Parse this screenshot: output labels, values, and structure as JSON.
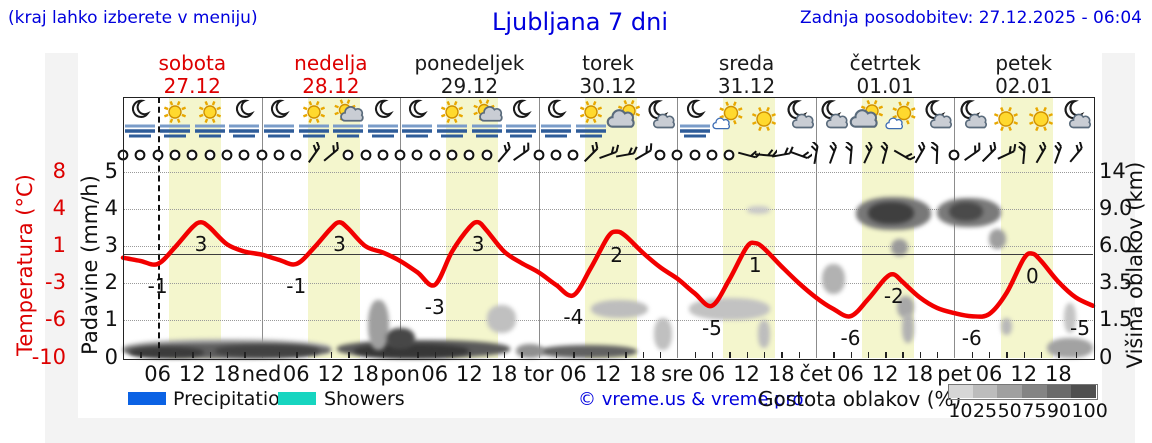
{
  "header": {
    "menu_hint": "(kraj lahko izberete v meniju)",
    "title": "Ljubljana 7 dni",
    "last_update": "Zadnja posodobitev: 27.12.2025 - 06:04"
  },
  "colors": {
    "accent_blue": "#0000dd",
    "day_highlight_red": "#dd0000",
    "curve_red": "#f20000",
    "daylight_band": "#f4f6cd",
    "precipitation_blue": "#0b62e4",
    "showers_teal": "#17d5c0"
  },
  "days": [
    {
      "name": "sobota",
      "date": "27.12",
      "highlight": true
    },
    {
      "name": "nedelja",
      "date": "28.12",
      "highlight": true
    },
    {
      "name": "ponedeljek",
      "date": "29.12",
      "highlight": false
    },
    {
      "name": "torek",
      "date": "30.12",
      "highlight": false
    },
    {
      "name": "sreda",
      "date": "31.12",
      "highlight": false
    },
    {
      "name": "četrtek",
      "date": "01.01",
      "highlight": false
    },
    {
      "name": "petek",
      "date": "02.01",
      "highlight": false
    }
  ],
  "axes": {
    "temperature": {
      "title": "Temperatura (°C)",
      "ticks": [
        "8",
        "4",
        "1",
        "-3",
        "-6",
        "-10"
      ]
    },
    "precipitation": {
      "title": "Padavine (mm/h)",
      "ticks": [
        "5",
        "4",
        "3",
        "2",
        "1",
        "0"
      ]
    },
    "cloud_height": {
      "title": "Višina oblakov (km)",
      "ticks": [
        "14",
        "9.0",
        "6.0",
        "3.5",
        "1.5",
        "0"
      ]
    },
    "x_hour_labels": [
      "06",
      "12",
      "18"
    ],
    "x_day_abbrevs": [
      "ned",
      "pon",
      "tor",
      "sre",
      "čet",
      "pet"
    ]
  },
  "weather_icons": [
    "moon-fog",
    "sun-fog",
    "sun-fog",
    "moon-fog",
    "moon-fog",
    "sun-fog",
    "sun-cloud-fog",
    "moon-fog",
    "moon-fog",
    "sun-fog",
    "sun-cloud-fog",
    "moon-fog",
    "moon-fog",
    "sun-fog",
    "sun-cloud",
    "moon-cloud",
    "moon-fog",
    "sun-smallcloud",
    "sun",
    "moon-cloud",
    "moon-cloud",
    "sun-cloud",
    "sun-smallcloud",
    "moon-cloud",
    "moon-cloud",
    "sun",
    "sun",
    "moon-cloud"
  ],
  "wind_symbols": [
    "calm",
    "calm",
    "calm",
    "calm",
    "calm",
    "calm",
    "calm",
    "calm",
    "calm",
    "calm",
    "calm",
    "barb:-55",
    "barb:-40",
    "calm",
    "calm",
    "calm",
    "calm",
    "calm",
    "calm",
    "calm",
    "calm",
    "calm",
    "barb:-50",
    "barb:-35",
    "calm",
    "calm",
    "calm",
    "barb:-45",
    "barb:-20",
    "barb:-10",
    "barb:-30",
    "calm",
    "calm",
    "calm",
    "calm",
    "calm",
    "barb:15",
    "barb:5",
    "barb:-10",
    "barb:20",
    "barb:-80",
    "barb:-70",
    "barb:-85",
    "barb:-65",
    "barb:-75",
    "barb:30",
    "barb:-60",
    "barb:-88",
    "calm",
    "barb:-35",
    "barb:-45",
    "barb:-25",
    "barb:-85",
    "barb:-60",
    "barb:-70",
    "barb:-50"
  ],
  "chart_data": {
    "type": "line",
    "title": "Ljubljana 7 dni",
    "xlabel": "",
    "ylabel_left": [
      "Temperatura (°C)",
      "Padavine (mm/h)"
    ],
    "ylabel_right": "Višina oblakov (km)",
    "temp_axis_range": [
      -10,
      8
    ],
    "precip_axis_range": [
      0,
      5
    ],
    "cloud_axis_km": [
      0,
      1.5,
      3.5,
      6,
      9,
      14
    ],
    "x_range_hours": [
      0,
      168
    ],
    "daylight_hours": [
      8,
      17
    ],
    "current_time_hour": 6.1,
    "freezing_line_c": 0,
    "grid": true,
    "series": [
      {
        "name": "Temperatura (°C)",
        "color": "#f20000",
        "x_hours": [
          0,
          3,
          6,
          9,
          12,
          13.5,
          15,
          18,
          21,
          24,
          27,
          30,
          33,
          36,
          37.5,
          39,
          42,
          45,
          48,
          51,
          54,
          57,
          60,
          61.5,
          63,
          66,
          69,
          72,
          75,
          78,
          81,
          84,
          85.5,
          87,
          90,
          93,
          96,
          99,
          102,
          105,
          108,
          109.5,
          111,
          114,
          117,
          120,
          123,
          126,
          129,
          132,
          133.5,
          135,
          138,
          141,
          144,
          147,
          150,
          153,
          156,
          157.5,
          159,
          162,
          165,
          168
        ],
        "values": [
          -0.4,
          -0.7,
          -1.0,
          0.6,
          2.5,
          3.0,
          2.5,
          0.9,
          0.2,
          -0.1,
          -0.6,
          -1.0,
          0.5,
          2.4,
          3.0,
          2.4,
          0.7,
          0.1,
          -0.7,
          -1.8,
          -3.0,
          0.2,
          2.5,
          3.0,
          2.2,
          0.2,
          -0.9,
          -1.8,
          -3.0,
          -4.0,
          -1.4,
          1.6,
          2.1,
          1.7,
          0.1,
          -1.3,
          -2.4,
          -3.8,
          -5.0,
          -2.5,
          0.6,
          1.0,
          0.5,
          -1.2,
          -2.8,
          -4.2,
          -5.3,
          -6.0,
          -4.4,
          -2.4,
          -2.0,
          -2.7,
          -4.2,
          -5.2,
          -5.7,
          -6.0,
          -5.8,
          -3.8,
          -0.5,
          0.0,
          -0.7,
          -2.7,
          -4.2,
          -5.0
        ]
      }
    ],
    "point_labels": [
      {
        "hour": 6,
        "value": -1
      },
      {
        "hour": 13.5,
        "value": 3
      },
      {
        "hour": 30,
        "value": -1
      },
      {
        "hour": 37.5,
        "value": 3
      },
      {
        "hour": 54,
        "value": -3
      },
      {
        "hour": 61.5,
        "value": 3
      },
      {
        "hour": 78,
        "value": -4
      },
      {
        "hour": 85.5,
        "value": 2
      },
      {
        "hour": 102,
        "value": -5
      },
      {
        "hour": 109.5,
        "value": 1
      },
      {
        "hour": 126,
        "value": -6
      },
      {
        "hour": 133.5,
        "value": -2
      },
      {
        "hour": 147,
        "value": -6
      },
      {
        "hour": 157.5,
        "value": 0
      },
      {
        "hour": 167.5,
        "value": -5
      }
    ]
  },
  "cloud_blobs": [
    {
      "h0": 0,
      "h1": 36,
      "k0": 0,
      "k1": 0.75,
      "c": "#b0b0b0"
    },
    {
      "h0": 0,
      "h1": 36,
      "k0": 0,
      "k1": 0.6,
      "c": "#5f5f5f"
    },
    {
      "h0": 1,
      "h1": 14,
      "k0": 0,
      "k1": 0.45,
      "c": "#3b3b3b"
    },
    {
      "h0": 16,
      "h1": 34,
      "k0": 0.05,
      "k1": 0.5,
      "c": "#424242"
    },
    {
      "h0": 37,
      "h1": 67,
      "k0": 0,
      "k1": 0.7,
      "c": "#5a5a5a"
    },
    {
      "h0": 40,
      "h1": 60,
      "k0": 0,
      "k1": 0.55,
      "c": "#373737"
    },
    {
      "h0": 72,
      "h1": 89,
      "k0": 0,
      "k1": 0.5,
      "c": "#616161"
    },
    {
      "h0": 42.5,
      "h1": 46,
      "k0": 0.3,
      "k1": 2.6,
      "c": "#9f9f9f"
    },
    {
      "h0": 45.5,
      "h1": 50.5,
      "k0": 0.35,
      "k1": 1.2,
      "c": "#474747"
    },
    {
      "h0": 63,
      "h1": 68,
      "k0": 1.0,
      "k1": 2.3,
      "c": "#c0c0c0"
    },
    {
      "h0": 68,
      "h1": 73,
      "k0": 0,
      "k1": 0.55,
      "c": "#8f8f8f"
    },
    {
      "h0": 81,
      "h1": 91,
      "k0": 1.6,
      "k1": 2.6,
      "c": "#bdbdbd"
    },
    {
      "h0": 92,
      "h1": 95,
      "k0": 0.3,
      "k1": 1.6,
      "c": "#c0c0c0"
    },
    {
      "h0": 98,
      "h1": 112,
      "k0": 1.5,
      "k1": 2.7,
      "c": "#c2c2c2"
    },
    {
      "h0": 108,
      "h1": 112,
      "k0": 8.6,
      "k1": 9.4,
      "c": "#c8c8c8"
    },
    {
      "h0": 110,
      "h1": 112,
      "k0": 0.4,
      "k1": 1.5,
      "c": "#bdbdbd"
    },
    {
      "h0": 121,
      "h1": 125,
      "k0": 2.9,
      "k1": 4.8,
      "c": "#b2b2b2"
    },
    {
      "h0": 127,
      "h1": 140,
      "k0": 7.3,
      "k1": 10.6,
      "c": "#787878"
    },
    {
      "h0": 129,
      "h1": 137,
      "k0": 7.8,
      "k1": 10.0,
      "c": "#3f3f3f"
    },
    {
      "h0": 133,
      "h1": 136,
      "k0": 5.3,
      "k1": 6.6,
      "c": "#9a9a9a"
    },
    {
      "h0": 134,
      "h1": 137,
      "k0": 1.6,
      "k1": 2.8,
      "c": "#a8a8a8"
    },
    {
      "h0": 135,
      "h1": 137,
      "k0": 0.6,
      "k1": 1.9,
      "c": "#b2b2b2"
    },
    {
      "h0": 141,
      "h1": 152,
      "k0": 7.5,
      "k1": 10.5,
      "c": "#7a7a7a"
    },
    {
      "h0": 143,
      "h1": 149,
      "k0": 8.0,
      "k1": 10.0,
      "c": "#4a4a4a"
    },
    {
      "h0": 150,
      "h1": 153,
      "k0": 5.8,
      "k1": 7.4,
      "c": "#9e9e9e"
    },
    {
      "h0": 152,
      "h1": 154,
      "k0": 0.9,
      "k1": 1.6,
      "c": "#b8b8b8"
    },
    {
      "h0": 160,
      "h1": 168,
      "k0": 0,
      "k1": 0.8,
      "c": "#a2a2a2"
    },
    {
      "h0": 163,
      "h1": 165,
      "k0": 1.0,
      "k1": 2.4,
      "c": "#c4c4c4"
    }
  ],
  "legend": {
    "precipitation_label": "Precipitation",
    "showers_label": "Showers",
    "copyright": "© vreme.us & vreme.pro",
    "cloud_density_label": "Gostota oblakov (%)",
    "cloud_density_scale": [
      "10",
      "25",
      "50",
      "75",
      "90",
      "100"
    ],
    "cloud_density_colors": [
      "#d6d6d6",
      "#bcbcbc",
      "#a0a0a0",
      "#848484",
      "#6a6a6a",
      "#4f4f4f"
    ]
  }
}
